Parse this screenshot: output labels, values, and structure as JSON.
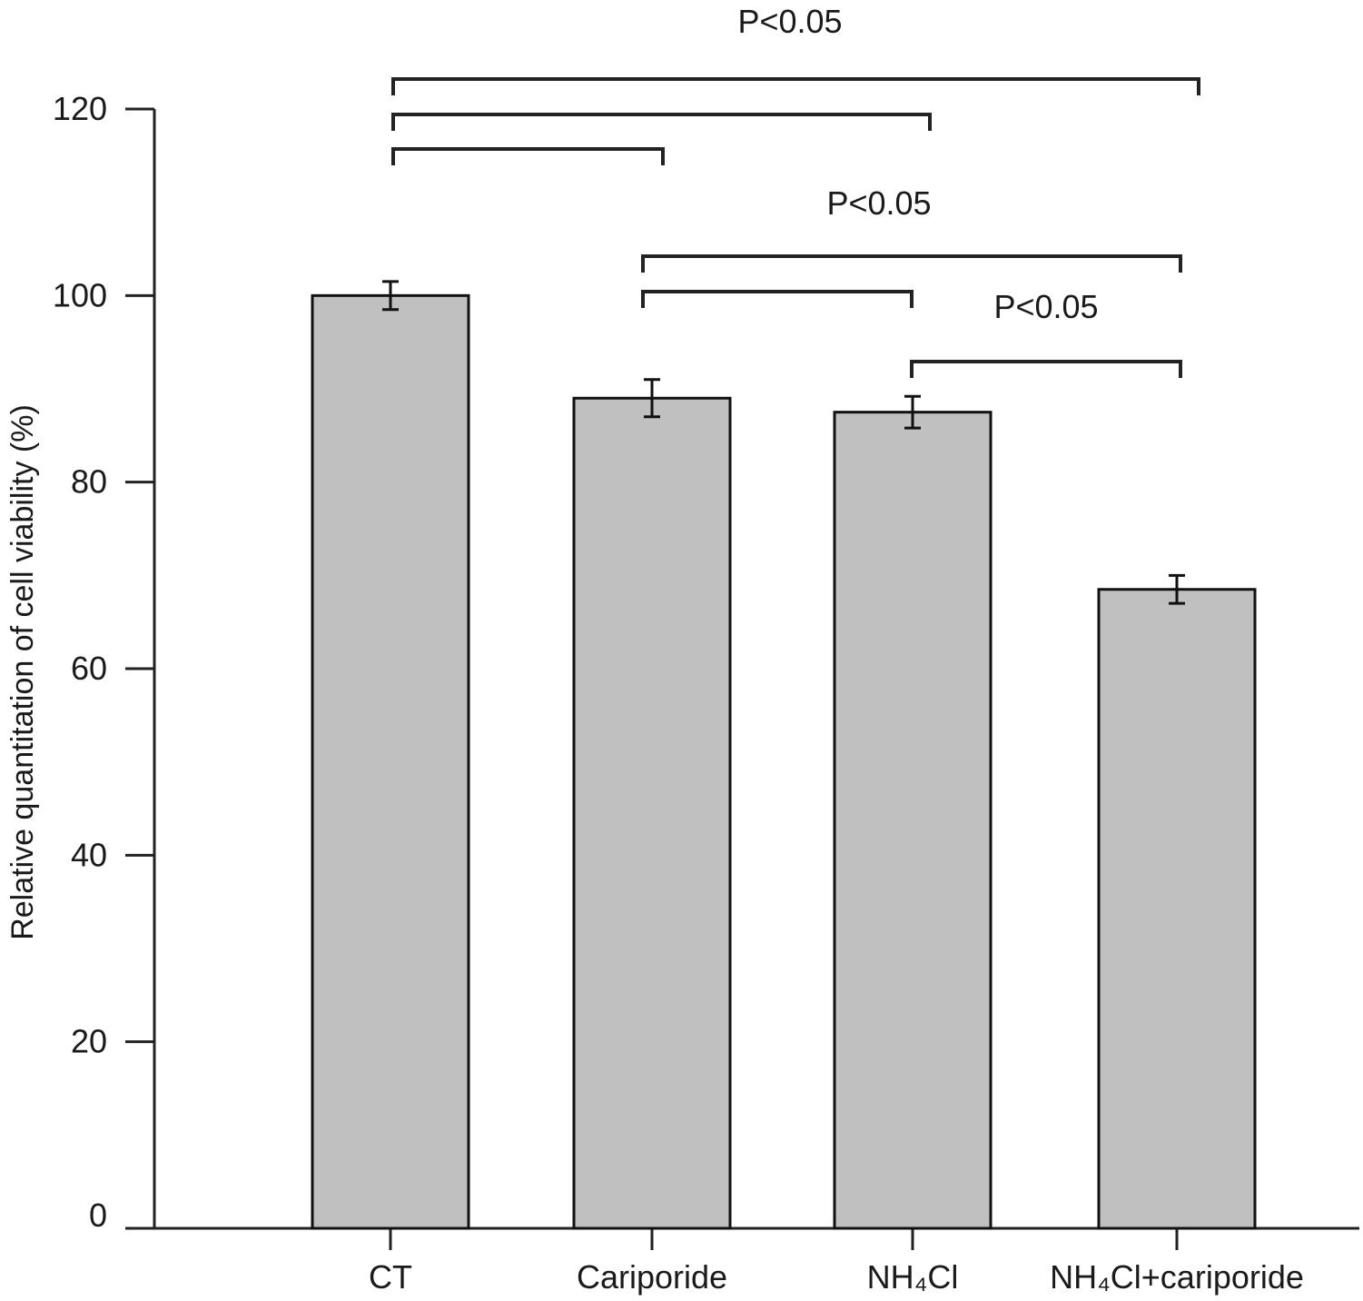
{
  "chart_data": {
    "type": "bar",
    "title": "",
    "xlabel": "",
    "ylabel": "Relative quantitation of cell viability (%)",
    "ylim": [
      0,
      120
    ],
    "yticks": [
      0,
      20,
      40,
      60,
      80,
      100,
      120
    ],
    "grid": false,
    "legend": "none",
    "categories": [
      "CT",
      "Cariporide",
      "NH₄Cl",
      "NH₄Cl+cariporide"
    ],
    "values": [
      100.0,
      89.0,
      87.5,
      68.5
    ],
    "errors": [
      1.5,
      2.0,
      1.7,
      1.5
    ],
    "significance": [
      {
        "label": "P<0.05",
        "groups": [
          0,
          1,
          2,
          3
        ]
      },
      {
        "label": "P<0.05",
        "groups": [
          1,
          2,
          3
        ]
      },
      {
        "label": "P<0.05",
        "groups": [
          2,
          3
        ]
      }
    ],
    "colors": {
      "bar_fill": "#c0c0c0",
      "bar_stroke": "#111111",
      "axis": "#222222"
    }
  }
}
